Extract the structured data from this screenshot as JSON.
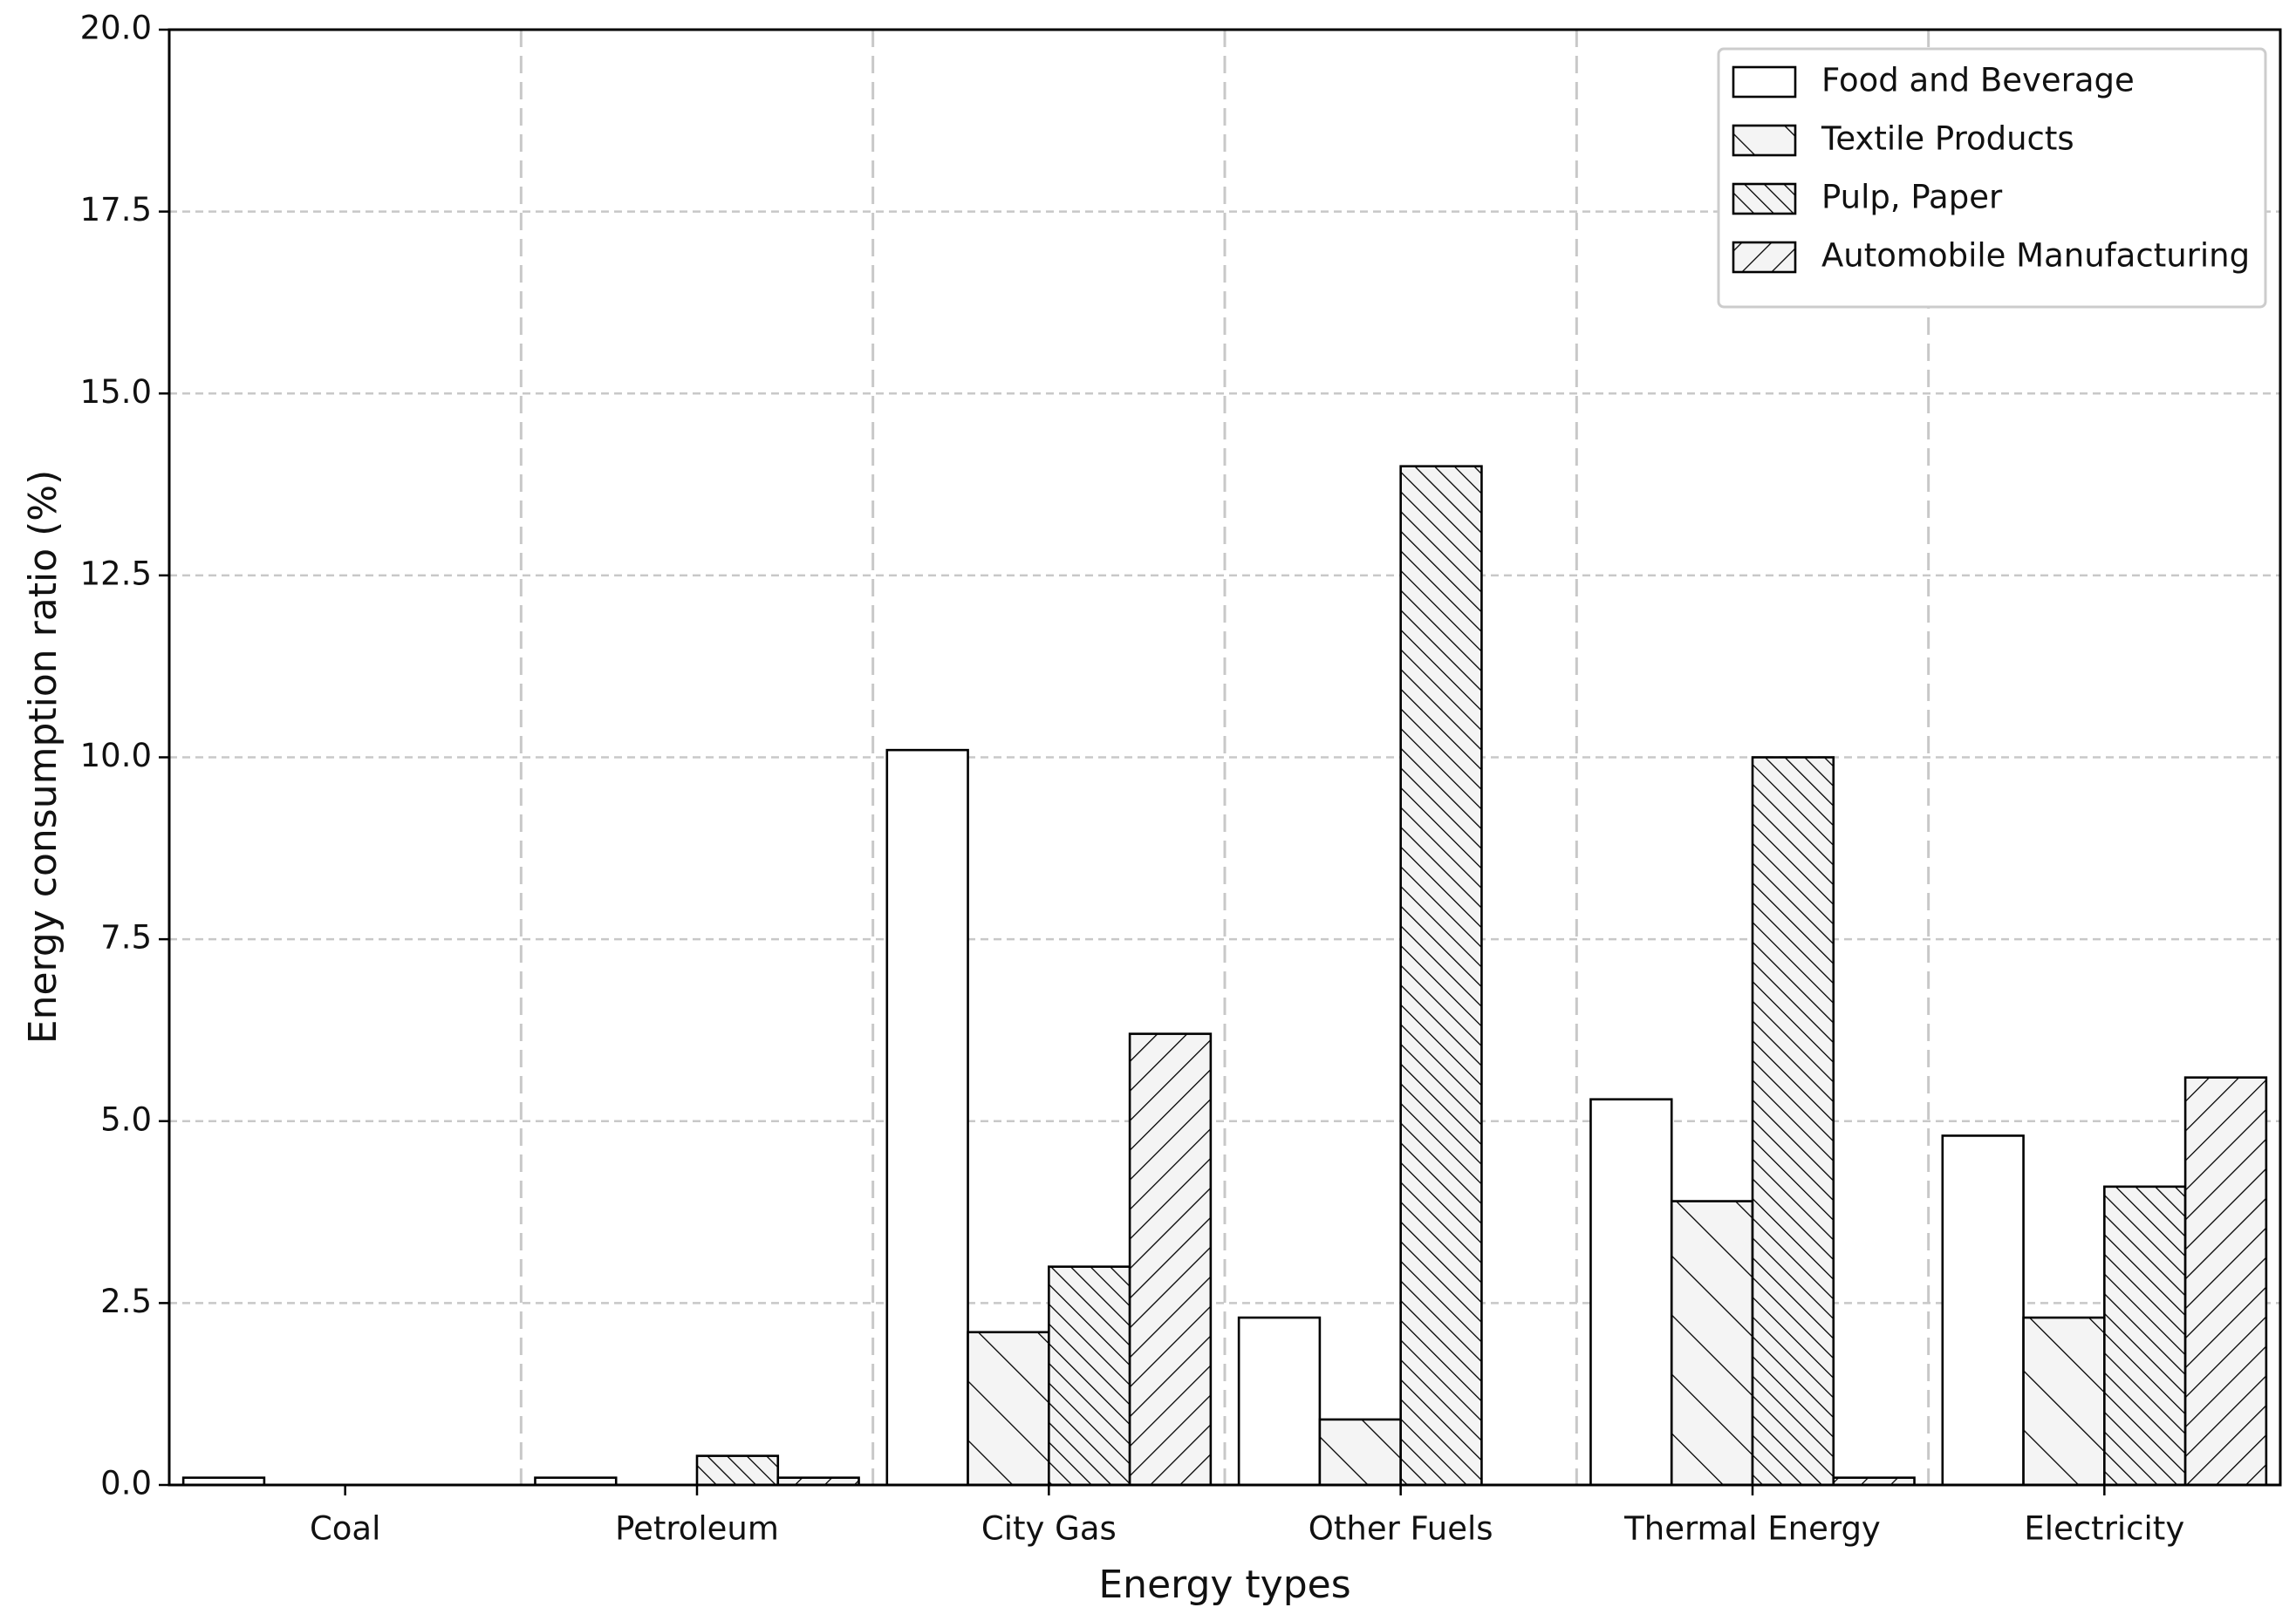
{
  "chart_data": {
    "type": "bar",
    "x_label": "Energy types",
    "y_label": "Energy consumption ratio (%)",
    "categories": [
      "Coal",
      "Petroleum",
      "City Gas",
      "Other Fuels",
      "Thermal Energy",
      "Electricity"
    ],
    "series": [
      {
        "name": "Food and Beverage",
        "color": "#ffffff",
        "values": [
          0.1,
          0.1,
          10.1,
          2.3,
          5.3,
          4.8
        ]
      },
      {
        "name": "Textile Products",
        "color": "#f4f4f4",
        "hatch": "\\",
        "values": [
          0,
          0,
          2.1,
          0.9,
          3.9,
          2.3
        ]
      },
      {
        "name": "Pulp, Paper",
        "color": "#f4f4f4",
        "hatch": "\\\\\\",
        "values": [
          0,
          0.4,
          3.0,
          14.0,
          10.0,
          4.1
        ]
      },
      {
        "name": "Automobile Manufacturing",
        "color": "#f4f4f4",
        "hatch": "//",
        "values": [
          0,
          0.1,
          6.2,
          0,
          0.1,
          5.6
        ]
      }
    ],
    "ylim": [
      0,
      20
    ],
    "yticks": [
      {
        "value": 0,
        "label": "0.0"
      },
      2.5,
      {
        "value": 5,
        "label": "5.0"
      },
      7.5,
      {
        "value": 10,
        "label": "10.0"
      },
      12.5,
      {
        "value": 15,
        "label": "15.0"
      },
      17.5,
      {
        "value": 20,
        "label": "20.0"
      }
    ],
    "grid": true,
    "legend": "upper right"
  }
}
